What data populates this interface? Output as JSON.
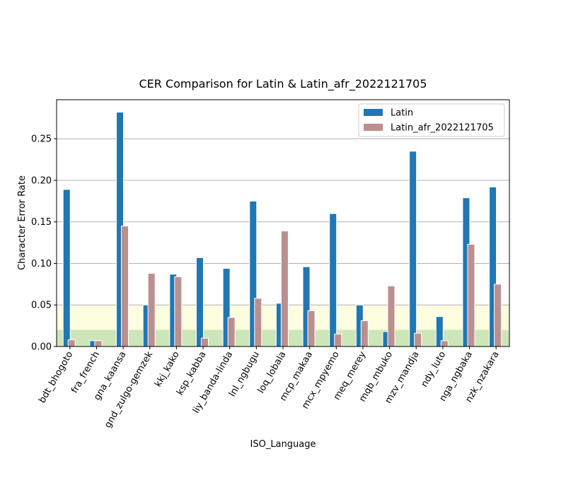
{
  "chart_data": {
    "type": "bar",
    "title": "CER Comparison for Latin & Latin_afr_2022121705",
    "xlabel": "ISO_Language",
    "ylabel": "Character Error Rate",
    "ylim": [
      0,
      0.297
    ],
    "yticks": [
      "0.00",
      "0.05",
      "0.10",
      "0.15",
      "0.20",
      "0.25"
    ],
    "grid": "horizontal",
    "legend_position": "top-right",
    "bands": [
      {
        "from": 0.0,
        "to": 0.02,
        "color": "#cde6b8"
      },
      {
        "from": 0.02,
        "to": 0.05,
        "color": "#fdfde0"
      }
    ],
    "categories": [
      "bdt_bhogoto",
      "fra_french",
      "gna_kaansa",
      "gnd_zulgo-gemzek",
      "kkj_kako",
      "ksp_kabba",
      "liy_banda-linda",
      "lnl_ngbugu",
      "loq_lobala",
      "mcp_makaa",
      "mcx_mpyemo",
      "meq_merey",
      "mqb_mbuko",
      "mzv_mandja",
      "ndy_luto",
      "nga_ngbaka",
      "nzk_nzakara"
    ],
    "series": [
      {
        "name": "Latin",
        "color": "#1f77b4",
        "values": [
          0.189,
          0.007,
          0.282,
          0.05,
          0.087,
          0.107,
          0.094,
          0.175,
          0.052,
          0.096,
          0.16,
          0.05,
          0.018,
          0.235,
          0.036,
          0.179,
          0.192
        ]
      },
      {
        "name": "Latin_afr_2022121705",
        "color": "#bc8f8f",
        "values": [
          0.008,
          0.007,
          0.145,
          0.088,
          0.084,
          0.01,
          0.035,
          0.058,
          0.139,
          0.043,
          0.015,
          0.031,
          0.073,
          0.016,
          0.007,
          0.123,
          0.075
        ]
      }
    ]
  }
}
